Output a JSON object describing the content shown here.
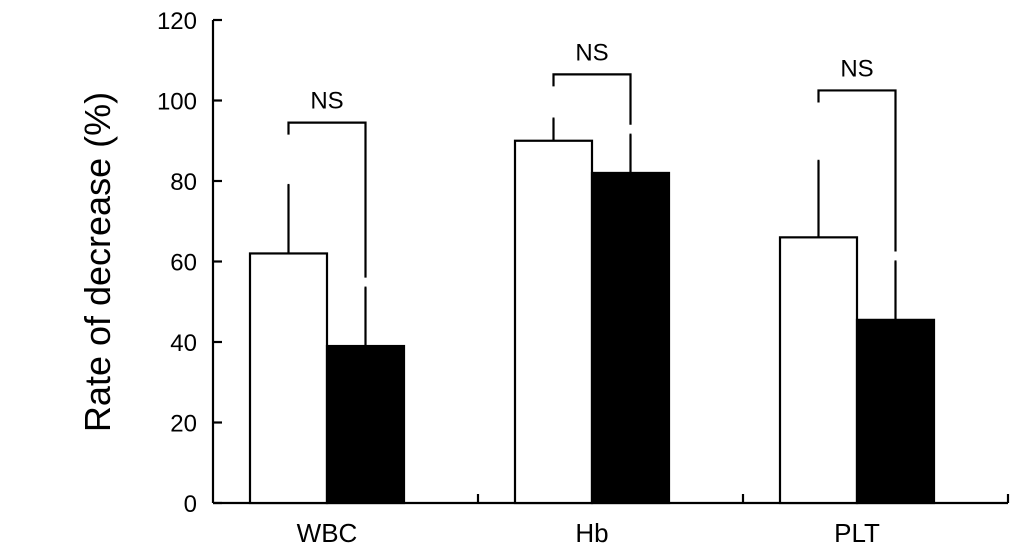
{
  "chart_data": {
    "type": "bar",
    "title": "",
    "xlabel": "",
    "ylabel": "Rate of decrease (%)",
    "ylim": [
      0,
      120
    ],
    "yticks": [
      0,
      20,
      40,
      60,
      80,
      100,
      120
    ],
    "ytick_labels": [
      "0",
      "20",
      "40",
      "60",
      "80",
      "100",
      "120"
    ],
    "categories": [
      "WBC",
      "Hb",
      "PLT"
    ],
    "series": [
      {
        "fill": "#ffffff",
        "values": [
          62,
          90,
          66
        ],
        "error": [
          17,
          5.5,
          19
        ]
      },
      {
        "fill": "#000000",
        "values": [
          39,
          82,
          45.5
        ],
        "error": [
          14.5,
          9.5,
          14.5
        ]
      }
    ],
    "significance": [
      {
        "label": "NS",
        "bracket_top": 94.5
      },
      {
        "label": "NS",
        "bracket_top": 106.5
      },
      {
        "label": "NS",
        "bracket_top": 102.5
      }
    ],
    "grid": false,
    "legend": "none"
  }
}
